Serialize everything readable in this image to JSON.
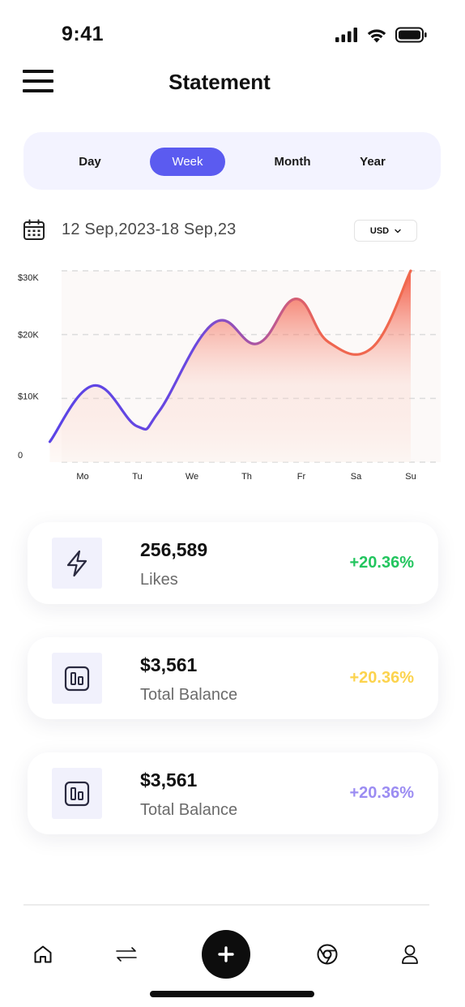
{
  "status_bar": {
    "time": "9:41",
    "icons": [
      "signal-icon",
      "wifi-icon",
      "battery-icon"
    ]
  },
  "header": {
    "menu_icon": "hamburger-menu-icon",
    "title": "Statement"
  },
  "period_tabs": {
    "items": [
      {
        "label": "Day",
        "active": false
      },
      {
        "label": "Week",
        "active": true
      },
      {
        "label": "Month",
        "active": false
      },
      {
        "label": "Year",
        "active": false
      }
    ],
    "active_color": "#5b5bf0"
  },
  "date_range": {
    "icon": "calendar-icon",
    "text": "12 Sep,2023-18 Sep,23",
    "currency": "USD"
  },
  "chart_data": {
    "type": "area",
    "categories": [
      "Mo",
      "Tu",
      "We",
      "Th",
      "Fr",
      "Sa",
      "Su"
    ],
    "y_ticks": [
      "0",
      "$10K",
      "$20K",
      "$30K"
    ],
    "y_tick_values": [
      0,
      10000,
      20000,
      30000
    ],
    "ylim": [
      0,
      30000
    ],
    "x": [
      -0.6,
      0.2,
      1.0,
      1.4,
      2.4,
      3.2,
      3.9,
      4.5,
      5.3,
      6.0
    ],
    "values": [
      3200,
      12000,
      5600,
      8000,
      21800,
      18600,
      25600,
      18800,
      18000,
      30000
    ],
    "title": "",
    "xlabel": "",
    "ylabel": "",
    "grid": true,
    "line_gradient": [
      "#5b44e6",
      "#f06a4e"
    ],
    "fill_color": "#f46a55"
  },
  "stats": [
    {
      "icon": "lightning-icon",
      "value": "256,589",
      "label": "Likes",
      "change": "+20.36%",
      "color": "#22c55e"
    },
    {
      "icon": "bar-chart-icon",
      "value": "$3,561",
      "label": "Total Balance",
      "change": "+20.36%",
      "color": "#fcd34d"
    },
    {
      "icon": "bar-chart-icon",
      "value": "$3,561",
      "label": "Total Balance",
      "change": "+20.36%",
      "color": "#9b8cf2"
    }
  ],
  "bottom_nav": {
    "items": [
      "home-icon",
      "transfer-icon",
      "add-icon",
      "globe-icon",
      "profile-icon"
    ]
  }
}
